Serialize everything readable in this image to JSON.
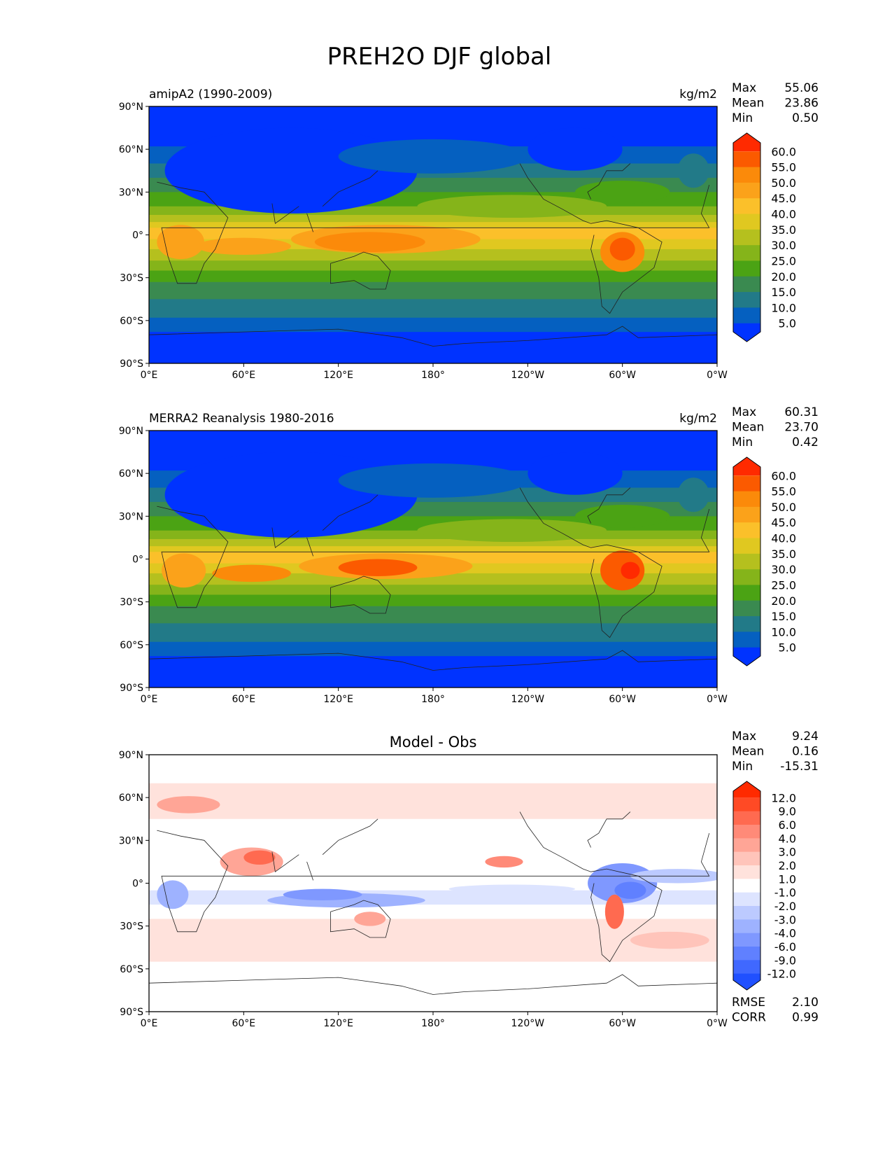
{
  "chart_data": {
    "type": "heatmap",
    "title": "PREH2O DJF global",
    "x_ticks": [
      "0°E",
      "60°E",
      "120°E",
      "180°",
      "120°W",
      "60°W",
      "0°W"
    ],
    "y_ticks": [
      "90°N",
      "60°N",
      "30°N",
      "0°",
      "30°S",
      "60°S",
      "90°S"
    ],
    "panels": [
      {
        "left_title": "amipA2 (1990-2009)",
        "center_title": "",
        "units": "kg/m2",
        "stats": [
          {
            "label": "Max",
            "value": "55.06"
          },
          {
            "label": "Mean",
            "value": "23.86"
          },
          {
            "label": "Min",
            "value": "0.50"
          }
        ],
        "colorbar_levels": [
          "60.0",
          "55.0",
          "50.0",
          "45.0",
          "40.0",
          "35.0",
          "30.0",
          "25.0",
          "20.0",
          "15.0",
          "10.0",
          "5.0"
        ],
        "colorbar_colors": [
          "#ff2a00",
          "#fb5a00",
          "#fb8a0a",
          "#fba21a",
          "#fbc02a",
          "#e0c820",
          "#b5c01e",
          "#85b41a",
          "#4ba314",
          "#3a8a50",
          "#227a88",
          "#0560c0",
          "#0033ff"
        ],
        "footer_stats": []
      },
      {
        "left_title": "MERRA2 Reanalysis 1980-2016",
        "center_title": "",
        "units": "kg/m2",
        "stats": [
          {
            "label": "Max",
            "value": "60.31"
          },
          {
            "label": "Mean",
            "value": "23.70"
          },
          {
            "label": "Min",
            "value": "0.42"
          }
        ],
        "colorbar_levels": [
          "60.0",
          "55.0",
          "50.0",
          "45.0",
          "40.0",
          "35.0",
          "30.0",
          "25.0",
          "20.0",
          "15.0",
          "10.0",
          "5.0"
        ],
        "colorbar_colors": [
          "#ff2a00",
          "#fb5a00",
          "#fb8a0a",
          "#fba21a",
          "#fbc02a",
          "#e0c820",
          "#b5c01e",
          "#85b41a",
          "#4ba314",
          "#3a8a50",
          "#227a88",
          "#0560c0",
          "#0033ff"
        ],
        "footer_stats": []
      },
      {
        "left_title": "",
        "center_title": "Model - Obs",
        "units": "",
        "stats": [
          {
            "label": "Max",
            "value": "9.24"
          },
          {
            "label": "Mean",
            "value": "0.16"
          },
          {
            "label": "Min",
            "value": "-15.31"
          }
        ],
        "colorbar_levels": [
          "12.0",
          "9.0",
          "6.0",
          "4.0",
          "3.0",
          "2.0",
          "1.0",
          "-1.0",
          "-2.0",
          "-3.0",
          "-4.0",
          "-6.0",
          "-9.0",
          "-12.0"
        ],
        "colorbar_colors": [
          "#ff2a00",
          "#ff4a25",
          "#ff6a50",
          "#ff8a78",
          "#ffa596",
          "#ffc4ba",
          "#ffe2dc",
          "#ffffff",
          "#dde4ff",
          "#bccaff",
          "#9eb2ff",
          "#7f98ff",
          "#6080ff",
          "#4068ff",
          "#2050ff"
        ],
        "footer_stats": [
          {
            "label": "RMSE",
            "value": "2.10"
          },
          {
            "label": "CORR",
            "value": "0.99"
          }
        ]
      }
    ]
  }
}
